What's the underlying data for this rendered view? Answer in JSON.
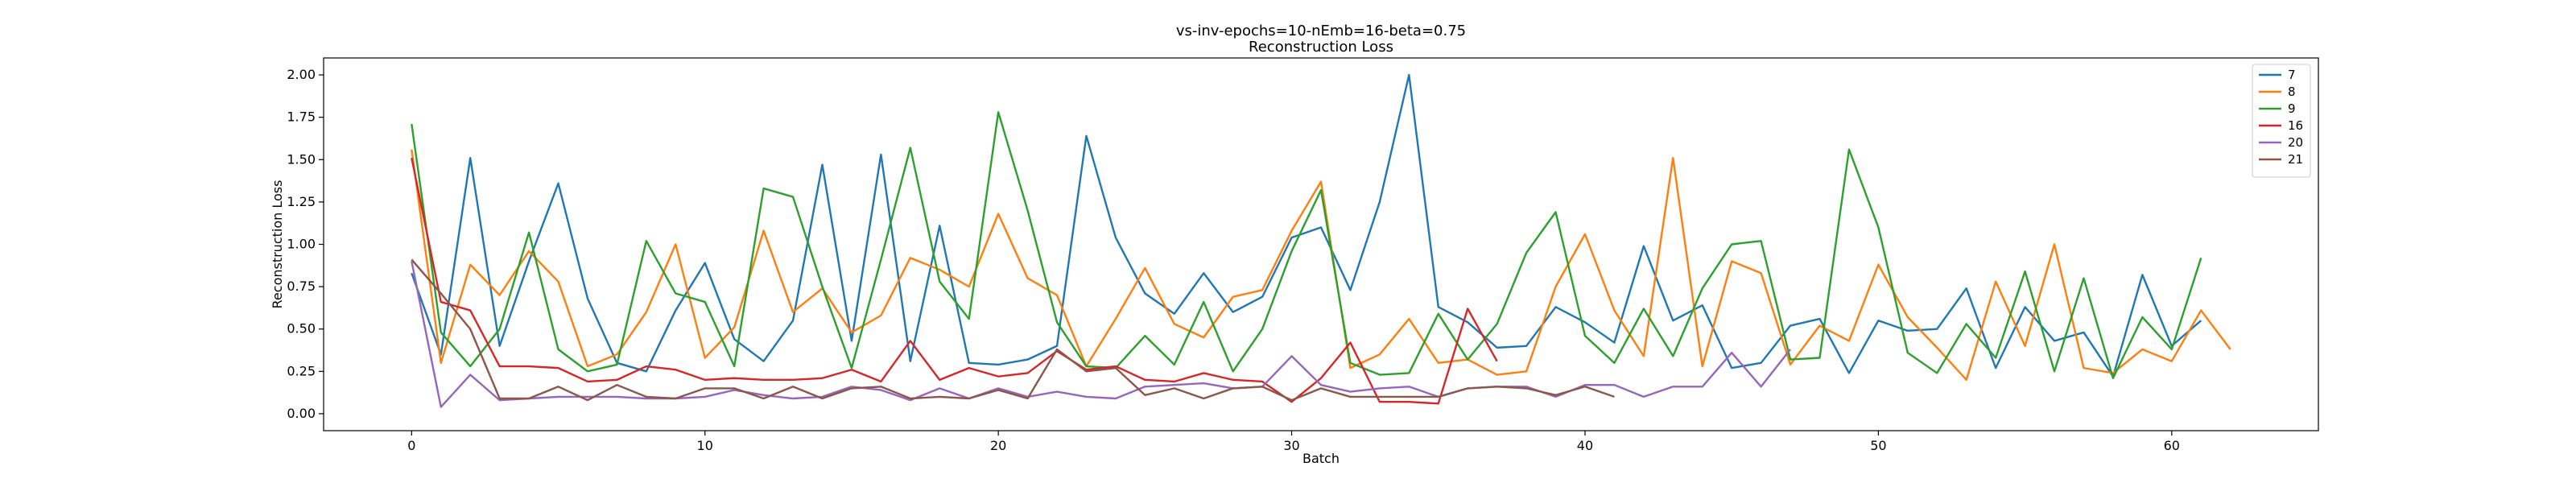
{
  "chart_data": {
    "type": "line",
    "title": "vs-inv-epochs=10-nEmb=16-beta=0.75",
    "subtitle": "Reconstruction Loss",
    "xlabel": "Batch",
    "ylabel": "Reconstruction Loss",
    "xlim": [
      -3,
      65
    ],
    "ylim": [
      -0.1,
      2.1
    ],
    "xticks": [
      0,
      10,
      20,
      30,
      40,
      50,
      60
    ],
    "yticks": [
      0.0,
      0.25,
      0.5,
      0.75,
      1.0,
      1.25,
      1.5,
      1.75,
      2.0
    ],
    "ytick_labels": [
      "0.00",
      "0.25",
      "0.50",
      "0.75",
      "1.00",
      "1.25",
      "1.50",
      "1.75",
      "2.00"
    ],
    "grid": false,
    "legend_position": "top-right",
    "series": [
      {
        "name": "7",
        "color": "#1f77b4",
        "values": [
          0.83,
          0.35,
          1.51,
          0.4,
          0.9,
          1.36,
          0.68,
          0.3,
          0.25,
          0.61,
          0.89,
          0.44,
          0.31,
          0.55,
          1.47,
          0.43,
          1.53,
          0.31,
          1.11,
          0.3,
          0.29,
          0.32,
          0.4,
          1.64,
          1.04,
          0.71,
          0.59,
          0.83,
          0.6,
          0.69,
          1.04,
          1.1,
          0.73,
          1.25,
          2.0,
          0.63,
          0.54,
          0.39,
          0.4,
          0.63,
          0.54,
          0.42,
          0.99,
          0.55,
          0.64,
          0.27,
          0.3,
          0.52,
          0.56,
          0.24,
          0.55,
          0.49,
          0.5,
          0.74,
          0.27,
          0.63,
          0.43,
          0.48,
          0.22,
          0.82,
          0.4,
          0.55
        ]
      },
      {
        "name": "8",
        "color": "#ff7f0e",
        "values": [
          1.56,
          0.3,
          0.88,
          0.7,
          0.96,
          0.78,
          0.28,
          0.35,
          0.6,
          1.0,
          0.33,
          0.51,
          1.08,
          0.6,
          0.74,
          0.48,
          0.58,
          0.92,
          0.85,
          0.75,
          1.18,
          0.8,
          0.7,
          0.28,
          0.56,
          0.86,
          0.53,
          0.45,
          0.69,
          0.73,
          1.08,
          1.37,
          0.27,
          0.35,
          0.56,
          0.3,
          0.32,
          0.23,
          0.25,
          0.75,
          1.06,
          0.61,
          0.34,
          1.51,
          0.28,
          0.9,
          0.83,
          0.29,
          0.52,
          0.43,
          0.88,
          0.57,
          0.39,
          0.2,
          0.78,
          0.4,
          1.0,
          0.27,
          0.24,
          0.38,
          0.31,
          0.61,
          0.38
        ]
      },
      {
        "name": "9",
        "color": "#2ca02c",
        "values": [
          1.71,
          0.48,
          0.28,
          0.5,
          1.07,
          0.38,
          0.25,
          0.29,
          1.02,
          0.71,
          0.66,
          0.28,
          1.33,
          1.28,
          0.75,
          0.27,
          0.91,
          1.57,
          0.78,
          0.56,
          1.78,
          1.2,
          0.54,
          0.28,
          0.27,
          0.46,
          0.29,
          0.66,
          0.25,
          0.5,
          0.96,
          1.32,
          0.3,
          0.23,
          0.24,
          0.59,
          0.32,
          0.53,
          0.95,
          1.19,
          0.46,
          0.3,
          0.62,
          0.34,
          0.74,
          1.0,
          1.02,
          0.32,
          0.33,
          1.56,
          1.1,
          0.36,
          0.24,
          0.53,
          0.33,
          0.84,
          0.25,
          0.8,
          0.21,
          0.57,
          0.38,
          0.92
        ]
      },
      {
        "name": "16",
        "color": "#d62728",
        "values": [
          1.51,
          0.66,
          0.61,
          0.28,
          0.28,
          0.27,
          0.19,
          0.2,
          0.28,
          0.26,
          0.2,
          0.21,
          0.2,
          0.2,
          0.21,
          0.26,
          0.19,
          0.43,
          0.2,
          0.27,
          0.22,
          0.24,
          0.37,
          0.26,
          0.28,
          0.2,
          0.19,
          0.24,
          0.2,
          0.19,
          0.07,
          0.21,
          0.42,
          0.07,
          0.07,
          0.06,
          0.62,
          0.31
        ]
      },
      {
        "name": "20",
        "color": "#9467bd",
        "values": [
          0.9,
          0.04,
          0.23,
          0.08,
          0.09,
          0.1,
          0.1,
          0.1,
          0.09,
          0.09,
          0.1,
          0.14,
          0.11,
          0.09,
          0.1,
          0.16,
          0.14,
          0.08,
          0.15,
          0.09,
          0.15,
          0.1,
          0.13,
          0.1,
          0.09,
          0.16,
          0.17,
          0.18,
          0.15,
          0.16,
          0.34,
          0.17,
          0.13,
          0.15,
          0.16,
          0.1,
          0.15,
          0.16,
          0.16,
          0.1,
          0.17,
          0.17,
          0.1,
          0.16,
          0.16,
          0.36,
          0.16,
          0.38
        ]
      },
      {
        "name": "21",
        "color": "#8c564b",
        "values": [
          0.91,
          0.71,
          0.5,
          0.09,
          0.09,
          0.16,
          0.08,
          0.17,
          0.1,
          0.09,
          0.15,
          0.15,
          0.09,
          0.16,
          0.09,
          0.15,
          0.16,
          0.09,
          0.1,
          0.09,
          0.14,
          0.09,
          0.38,
          0.25,
          0.27,
          0.11,
          0.15,
          0.09,
          0.15,
          0.16,
          0.08,
          0.15,
          0.1,
          0.1,
          0.1,
          0.1,
          0.15,
          0.16,
          0.15,
          0.11,
          0.16,
          0.1
        ]
      }
    ]
  }
}
